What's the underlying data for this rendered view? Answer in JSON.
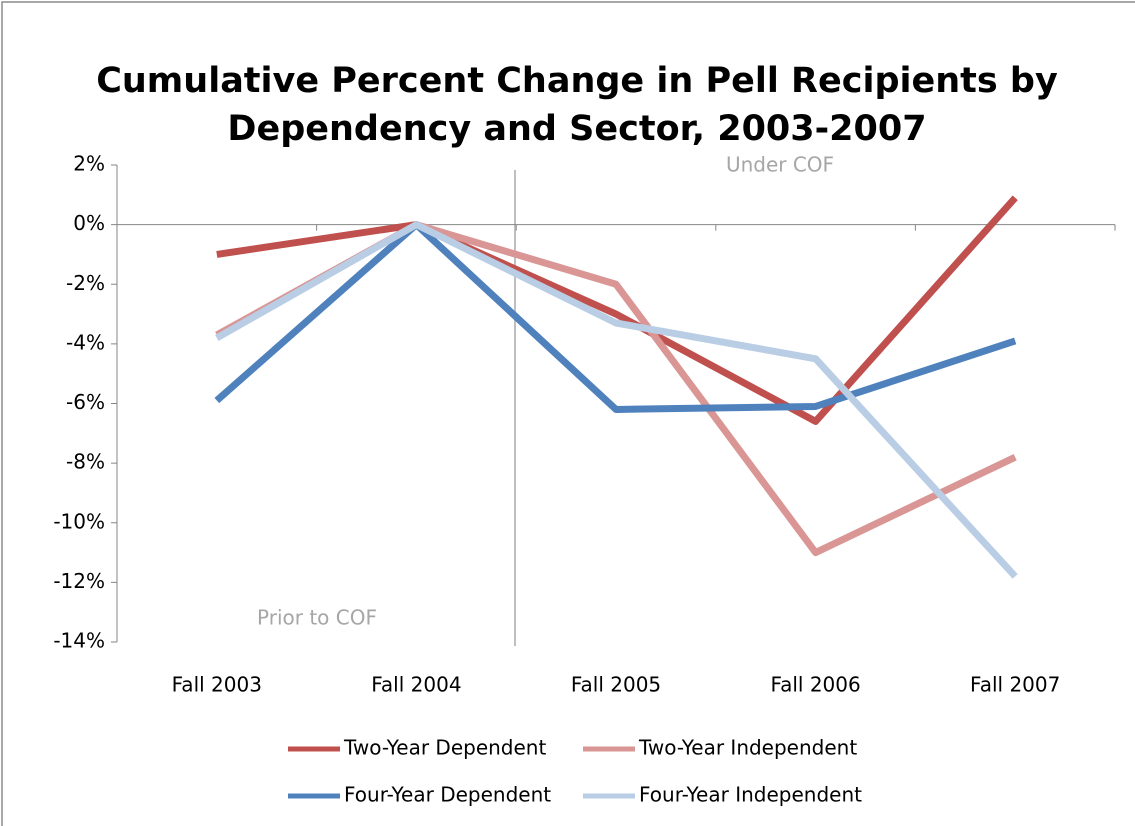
{
  "chart_data": {
    "type": "line",
    "title": [
      "Cumulative Percent Change in Pell Recipients by",
      "Dependency and Sector, 2003-2007"
    ],
    "categories": [
      "Fall 2003",
      "Fall 2004",
      "Fall 2005",
      "Fall 2006",
      "Fall 2007"
    ],
    "series": [
      {
        "name": "Two-Year Dependent",
        "color": "#c0504d",
        "values": [
          -1.0,
          0,
          -3.0,
          -6.6,
          0.9
        ]
      },
      {
        "name": "Two-Year Independent",
        "color": "#d99694",
        "values": [
          -3.7,
          0,
          -2.0,
          -11.0,
          -7.8
        ]
      },
      {
        "name": "Four-Year Dependent",
        "color": "#4f81bd",
        "values": [
          -5.9,
          0,
          -6.2,
          -6.1,
          -3.9
        ]
      },
      {
        "name": "Four-Year Independent",
        "color": "#b9cde5",
        "values": [
          -3.8,
          0,
          -3.3,
          -4.5,
          -11.8
        ]
      }
    ],
    "annotations": [
      "Under COF",
      "Prior to COF"
    ],
    "ylim": [
      -14,
      2
    ],
    "yticks": [
      {
        "value": -14,
        "label": "-14%"
      },
      {
        "value": -12,
        "label": "-12%"
      },
      {
        "value": -10,
        "label": "-10%"
      },
      {
        "value": -8,
        "label": "-8%"
      },
      {
        "value": -6,
        "label": "-6%"
      },
      {
        "value": -4,
        "label": "-4%"
      },
      {
        "value": -2,
        "label": "-2%"
      },
      {
        "value": 0,
        "label": "0%"
      },
      {
        "value": 2,
        "label": "2%"
      }
    ],
    "grid": false,
    "legend": "bottom"
  }
}
